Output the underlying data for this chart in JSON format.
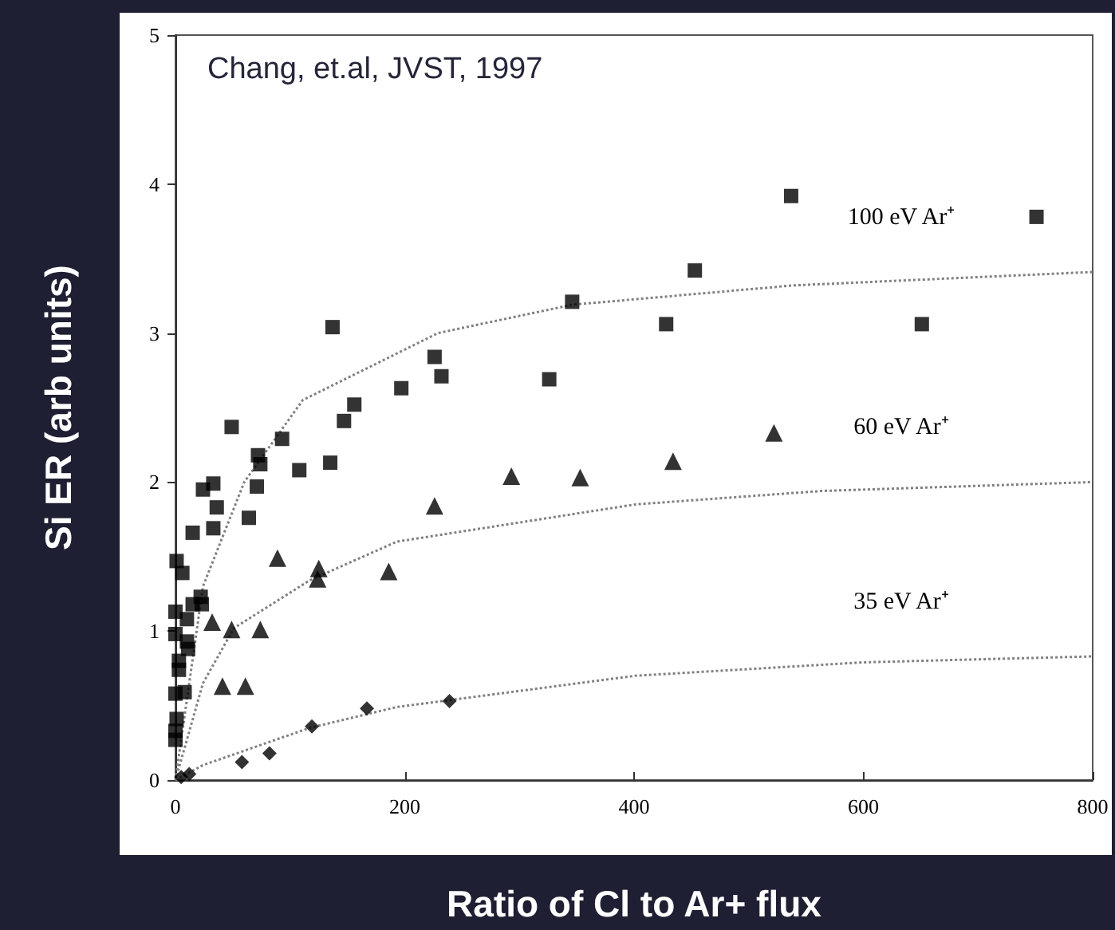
{
  "chart_data": {
    "type": "scatter",
    "xlabel": "Ratio of Cl to Ar+ flux",
    "ylabel": "Si ER (arb units)",
    "xlim": [
      0,
      800
    ],
    "xticks": [
      0,
      200,
      400,
      600,
      800
    ],
    "ylim": [
      0,
      5
    ],
    "yticks": [
      0,
      1,
      2,
      3,
      4,
      5
    ],
    "grid": false,
    "annotations": [
      "Chang, et.al, JVST, 1997",
      "100 eV Ar⁺",
      "60 eV Ar⁺",
      "35 eV Ar⁺"
    ],
    "series": [
      {
        "marker": "square",
        "color": "#000000",
        "x": [
          537,
          751,
          453,
          346,
          137,
          428,
          651,
          226,
          232,
          197,
          326,
          156,
          147,
          49,
          93,
          72,
          74,
          108,
          135,
          33,
          24,
          71,
          36,
          64,
          33,
          15,
          1,
          6,
          22,
          23,
          15,
          0,
          10,
          0,
          10,
          11,
          3,
          3,
          0,
          8,
          1,
          0,
          0
        ],
        "values": [
          3.92,
          3.78,
          3.42,
          3.21,
          3.04,
          3.06,
          3.06,
          2.84,
          2.71,
          2.63,
          2.69,
          2.52,
          2.41,
          2.37,
          2.29,
          2.18,
          2.12,
          2.08,
          2.13,
          1.99,
          1.95,
          1.97,
          1.83,
          1.76,
          1.69,
          1.66,
          1.47,
          1.39,
          1.23,
          1.18,
          1.18,
          1.13,
          1.08,
          0.98,
          0.93,
          0.88,
          0.8,
          0.74,
          0.58,
          0.59,
          0.41,
          0.33,
          0.27
        ]
      },
      {
        "marker": "triangle",
        "color": "#000000",
        "x": [
          89,
          125,
          124,
          186,
          32,
          49,
          74,
          41,
          61,
          226,
          293,
          353,
          434,
          522
        ],
        "values": [
          1.49,
          1.42,
          1.35,
          1.4,
          1.06,
          1.01,
          1.01,
          0.63,
          0.63,
          1.84,
          2.04,
          2.03,
          2.14,
          2.33
        ]
      },
      {
        "marker": "diamond",
        "color": "#000000",
        "x": [
          5,
          12,
          58,
          82,
          119,
          167,
          239
        ],
        "values": [
          0.02,
          0.04,
          0.12,
          0.18,
          0.36,
          0.48,
          0.53
        ]
      },
      {
        "type": "line",
        "marker": "none",
        "line_style": "dotted",
        "color": "#808080",
        "x": [
          0,
          24,
          60,
          111,
          229,
          346,
          539,
          800
        ],
        "values": [
          0,
          1.3,
          2.0,
          2.55,
          3.0,
          3.19,
          3.32,
          3.41
        ]
      },
      {
        "type": "line",
        "marker": "none",
        "line_style": "dotted",
        "color": "#808080",
        "x": [
          0,
          24,
          51,
          117,
          193,
          401,
          563,
          800
        ],
        "values": [
          0,
          0.65,
          1.02,
          1.34,
          1.6,
          1.85,
          1.94,
          2.0
        ]
      },
      {
        "type": "line",
        "marker": "none",
        "line_style": "dotted",
        "color": "#808080",
        "x": [
          0,
          24,
          117,
          193,
          401,
          600,
          800
        ],
        "values": [
          0,
          0.1,
          0.35,
          0.49,
          0.7,
          0.79,
          0.83
        ]
      }
    ]
  }
}
